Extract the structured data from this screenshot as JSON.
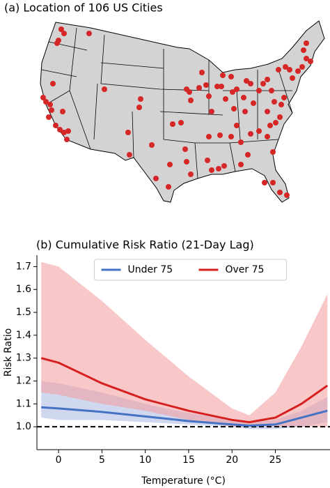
{
  "map": {
    "title": "(a) Location of 106 US Cities"
  },
  "chart_data": {
    "type": "line",
    "title": "(b) Cumulative Risk Ratio (21-Day Lag)",
    "xlabel": "Temperature (°C)",
    "ylabel": "Risk Ratio",
    "x": [
      -2,
      0,
      5,
      10,
      15,
      20,
      22,
      25,
      28,
      31
    ],
    "series": [
      {
        "name": "Under 75",
        "color": "#4472c4",
        "band_color": "#aab8e3",
        "values": [
          1.085,
          1.08,
          1.065,
          1.045,
          1.025,
          1.01,
          1.005,
          1.01,
          1.04,
          1.07
        ],
        "lower": [
          1.04,
          1.03,
          1.03,
          1.02,
          1.01,
          1.0,
          0.99,
          0.99,
          1.0,
          1.02
        ],
        "upper": [
          1.2,
          1.19,
          1.15,
          1.1,
          1.06,
          1.03,
          1.02,
          1.03,
          1.07,
          1.13
        ]
      },
      {
        "name": "Over 75",
        "color": "#d62020",
        "band_color": "#f29a9a",
        "values": [
          1.3,
          1.28,
          1.19,
          1.12,
          1.07,
          1.03,
          1.02,
          1.04,
          1.1,
          1.18
        ],
        "lower": [
          1.15,
          1.14,
          1.1,
          1.07,
          1.03,
          1.0,
          1.0,
          1.0,
          1.0,
          1.0
        ],
        "upper": [
          1.72,
          1.7,
          1.55,
          1.38,
          1.22,
          1.08,
          1.05,
          1.15,
          1.35,
          1.58
        ]
      }
    ],
    "reference_line": 1.0,
    "xlim": [
      -2.5,
      31.3
    ],
    "ylim": [
      0.9,
      1.75
    ],
    "xticks": [
      0,
      5,
      10,
      15,
      20,
      25
    ],
    "yticks": [
      {
        "value": 1.0,
        "label": "1.0"
      },
      {
        "value": 1.1,
        "label": "1.1"
      },
      {
        "value": 1.2,
        "label": "1.2"
      },
      {
        "value": 1.3,
        "label": "1.3"
      },
      {
        "value": 1.4,
        "label": "1.4"
      },
      {
        "value": 1.5,
        "label": "1.5"
      },
      {
        "value": 1.6,
        "label": "1.6"
      },
      {
        "value": 1.7,
        "label": "1.7"
      }
    ],
    "legend": "upper center"
  }
}
